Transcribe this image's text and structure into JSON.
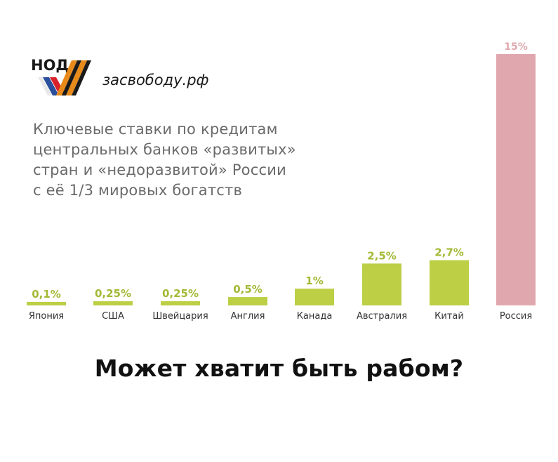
{
  "header": {
    "logo_text": "НОД",
    "site": "засвободу.рф"
  },
  "subtitle_lines": [
    "Ключевые ставки по кредитам",
    "центральных банков «развитых»",
    "стран и «недоразвитой» России",
    "с её 1/3 мировых богатств"
  ],
  "slogan": "Может хватит быть рабом?",
  "colors": {
    "bar": "#bccf45",
    "highlight_bar": "#e0a8ae",
    "value_label": "#a3b935",
    "highlight_label": "#e0a8ae",
    "category_label": "#333333"
  },
  "chart_data": {
    "type": "bar",
    "title": "",
    "xlabel": "",
    "ylabel": "",
    "categories": [
      "Япония",
      "США",
      "Швейцария",
      "Англия",
      "Канада",
      "Австралия",
      "Китай",
      "Россия"
    ],
    "values": [
      0.1,
      0.25,
      0.25,
      0.5,
      1,
      2.5,
      2.7,
      15
    ],
    "value_labels": [
      "0,1%",
      "0,25%",
      "0,25%",
      "0,5%",
      "1%",
      "2,5%",
      "2,7%",
      "15%"
    ],
    "highlight_index": 7,
    "ylim": [
      0,
      15
    ],
    "grid": false,
    "legend": "none"
  }
}
